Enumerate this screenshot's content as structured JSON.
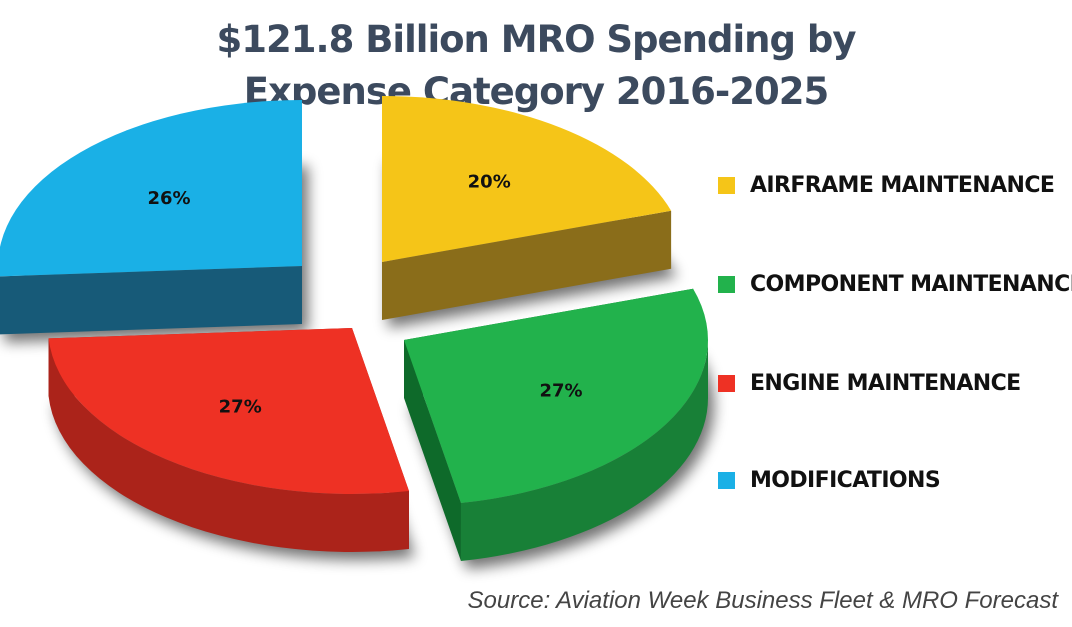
{
  "title_lines": [
    "$121.8 Billion MRO Spending by",
    "Expense Category 2016-2025"
  ],
  "source": "Source: Aviation Week Business Fleet & MRO Forecast",
  "chart_data": {
    "type": "pie",
    "title": "$121.8 Billion MRO Spending by Expense Category 2016-2025",
    "total": "$121.8 Billion",
    "unit": "%",
    "legend_position": "right",
    "slices": [
      {
        "name": "AIRFRAME MAINTENANCE",
        "value": 20,
        "label": "20%",
        "color": "#f5c518",
        "side_color": "#8a6d1a"
      },
      {
        "name": "COMPONENT MAINTENANCE",
        "value": 27,
        "label": "27%",
        "color": "#22b24c",
        "side_color": "#0e6a2a"
      },
      {
        "name": "ENGINE MAINTENANCE",
        "value": 27,
        "label": "27%",
        "color": "#ee3124",
        "side_color": "#a31a18"
      },
      {
        "name": "MODIFICATIONS",
        "value": 26,
        "label": "26%",
        "color": "#1ab0e6",
        "side_color": "#175a78"
      }
    ]
  }
}
